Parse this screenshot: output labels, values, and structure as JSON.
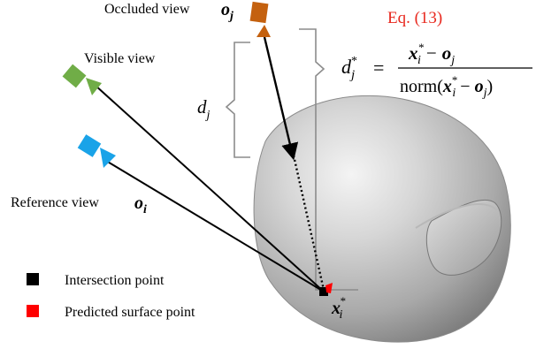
{
  "labels": {
    "occluded_view": "Occluded view",
    "visible_view": "Visible view",
    "reference_view": "Reference view"
  },
  "math": {
    "o_j_base": "o",
    "o_j_sub": "j",
    "o_i_base": "o",
    "o_i_sub": "i",
    "d_j_base": "d",
    "d_j_sub": "j",
    "x_base": "x",
    "x_sub": "i",
    "x_sup": "*"
  },
  "equation": {
    "label": "Eq. (13)",
    "lhs_base": "d",
    "lhs_sub": "j",
    "lhs_sup": "*",
    "equals": "=",
    "num_x": "x",
    "num_x_sub": "i",
    "num_x_sup": "*",
    "num_minus": "−",
    "num_o": "o",
    "num_o_sub": "j",
    "den_prefix": "norm(",
    "den_x": "x",
    "den_x_sub": "i",
    "den_x_sup": "*",
    "den_minus": "−",
    "den_o": "o",
    "den_o_sub": "j",
    "den_suffix": ")"
  },
  "legend": {
    "intersection_label": "Intersection point",
    "predicted_label": "Predicted surface point"
  },
  "colors": {
    "occluded_camera": "#c4610f",
    "visible_camera": "#70ad47",
    "reference_camera": "#1aa3e8",
    "equation_label": "#e8281e",
    "intersection": "#000000",
    "predicted": "#ff0000",
    "bracket": "#8c8c8c"
  },
  "icons": {
    "occluded_camera": "camera-icon",
    "visible_camera": "camera-icon",
    "reference_camera": "camera-icon"
  }
}
